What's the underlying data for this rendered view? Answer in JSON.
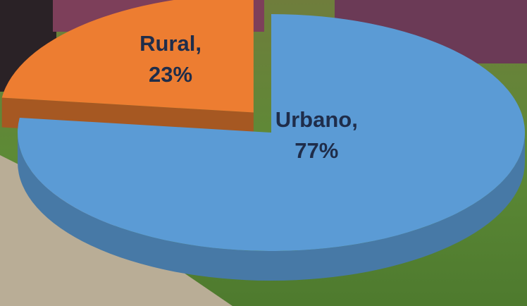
{
  "chart_data": {
    "type": "pie3d",
    "categories": [
      "Urbano,",
      "Rural,"
    ],
    "values": [
      77,
      23
    ],
    "value_labels": [
      "77%",
      "23%"
    ],
    "colors": [
      "#5b9bd5",
      "#ed7d31"
    ]
  }
}
